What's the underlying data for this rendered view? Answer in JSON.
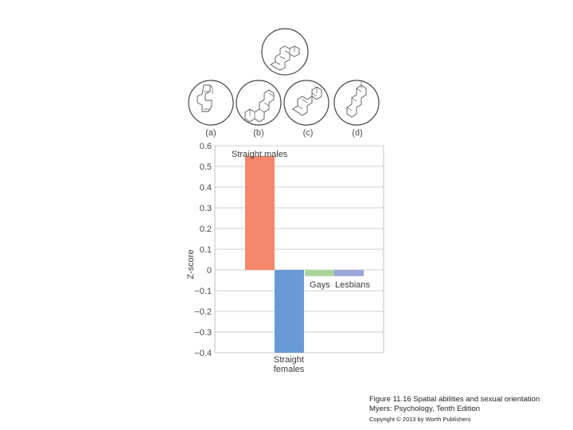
{
  "figure": {
    "panel_labels": [
      "(a)",
      "(b)",
      "(c)",
      "(d)"
    ]
  },
  "chart_data": {
    "type": "bar",
    "categories": [
      "Straight males",
      "Straight females",
      "Gays",
      "Lesbians"
    ],
    "values": [
      0.55,
      -0.4,
      -0.03,
      -0.03
    ],
    "bar_labels": [
      "Straight males",
      "Straight\nfemales",
      "Gays",
      "Lesbians"
    ],
    "colors": [
      "#f4876c",
      "#6a9ad6",
      "#a9d59c",
      "#9aa5d8"
    ],
    "ylabel": "Z-score",
    "xlabel": "",
    "ylim": [
      -0.4,
      0.6
    ],
    "yticks": [
      0.6,
      0.5,
      0.4,
      0.3,
      0.2,
      0.1,
      0,
      -0.1,
      -0.2,
      -0.3,
      -0.4
    ],
    "ytick_labels": [
      "0.6",
      "0.5",
      "0.4",
      "0.3",
      "0.2",
      "0.1",
      "0",
      "−0.1",
      "−0.2",
      "−0.3",
      "−0.4"
    ],
    "grid": true
  },
  "caption": {
    "line1": "Figure 11.16  Spatial abilities and sexual orientation",
    "line2": "Myers: Psychology, Tenth Edition",
    "line3": "Copyright © 2013 by Worth Publishers"
  }
}
